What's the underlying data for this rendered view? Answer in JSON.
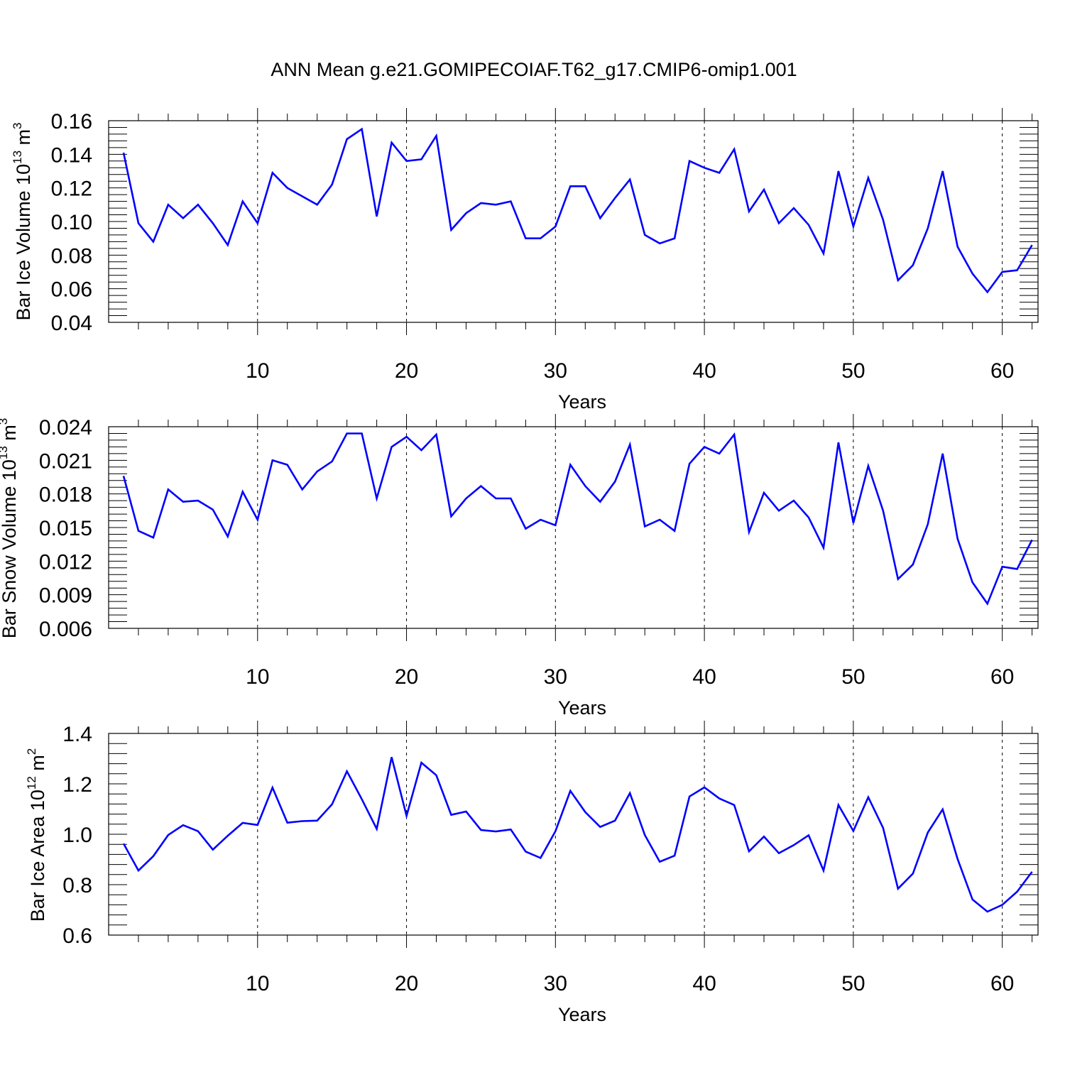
{
  "figure": {
    "title": "ANN Mean g.e21.GOMIPECOIAF.T62_g17.CMIP6-omip1.001",
    "line_color": "#0000ff"
  },
  "chart_data": [
    {
      "type": "line",
      "title": "ANN Mean g.e21.GOMIPECOIAF.T62_g17.CMIP6-omip1.001",
      "xlabel": "Years",
      "ylabel": {
        "text": "Bar Ice Volume 10",
        "sup1": "13",
        "unit": " m",
        "sup2": "3"
      },
      "xlim": [
        1,
        62
      ],
      "ylim": [
        0.04,
        0.16
      ],
      "yticks": [
        "0.04",
        "0.06",
        "0.08",
        "0.10",
        "0.12",
        "0.14",
        "0.16"
      ],
      "xticks": [
        "10",
        "20",
        "30",
        "40",
        "50",
        "60"
      ],
      "grid": "dashed vertical at x ticks",
      "series": [
        {
          "name": "Bar Ice Volume",
          "x": [
            1,
            2,
            3,
            4,
            5,
            6,
            7,
            8,
            9,
            10,
            11,
            12,
            13,
            14,
            15,
            16,
            17,
            18,
            19,
            20,
            21,
            22,
            23,
            24,
            25,
            26,
            27,
            28,
            29,
            30,
            31,
            32,
            33,
            34,
            35,
            36,
            37,
            38,
            39,
            40,
            41,
            42,
            43,
            44,
            45,
            46,
            47,
            48,
            49,
            50,
            51,
            52,
            53,
            54,
            55,
            56,
            57,
            58,
            59,
            60,
            61,
            62
          ],
          "values": [
            0.141,
            0.099,
            0.088,
            0.11,
            0.102,
            0.11,
            0.099,
            0.086,
            0.112,
            0.099,
            0.129,
            0.12,
            0.115,
            0.11,
            0.122,
            0.149,
            0.155,
            0.103,
            0.147,
            0.136,
            0.137,
            0.151,
            0.095,
            0.105,
            0.111,
            0.11,
            0.112,
            0.09,
            0.09,
            0.097,
            0.121,
            0.121,
            0.102,
            0.114,
            0.125,
            0.092,
            0.087,
            0.09,
            0.136,
            0.132,
            0.129,
            0.143,
            0.106,
            0.119,
            0.099,
            0.108,
            0.098,
            0.081,
            0.13,
            0.097,
            0.126,
            0.101,
            0.065,
            0.074,
            0.096,
            0.13,
            0.085,
            0.069,
            0.058,
            0.07,
            0.071,
            0.086
          ]
        }
      ]
    },
    {
      "type": "line",
      "xlabel": "Years",
      "ylabel": {
        "text": "Bar Snow Volume 10",
        "sup1": "13",
        "unit": " m",
        "sup2": "3"
      },
      "xlim": [
        1,
        62
      ],
      "ylim": [
        0.006,
        0.024
      ],
      "yticks": [
        "0.006",
        "0.009",
        "0.012",
        "0.015",
        "0.018",
        "0.021",
        "0.024"
      ],
      "xticks": [
        "10",
        "20",
        "30",
        "40",
        "50",
        "60"
      ],
      "grid": "dashed vertical at x ticks",
      "series": [
        {
          "name": "Bar Snow Volume",
          "x": [
            1,
            2,
            3,
            4,
            5,
            6,
            7,
            8,
            9,
            10,
            11,
            12,
            13,
            14,
            15,
            16,
            17,
            18,
            19,
            20,
            21,
            22,
            23,
            24,
            25,
            26,
            27,
            28,
            29,
            30,
            31,
            32,
            33,
            34,
            35,
            36,
            37,
            38,
            39,
            40,
            41,
            42,
            43,
            44,
            45,
            46,
            47,
            48,
            49,
            50,
            51,
            52,
            53,
            54,
            55,
            56,
            57,
            58,
            59,
            60,
            61,
            62
          ],
          "values": [
            0.0196,
            0.0147,
            0.0141,
            0.0184,
            0.0173,
            0.0174,
            0.0166,
            0.0142,
            0.0182,
            0.0157,
            0.021,
            0.0206,
            0.0184,
            0.02,
            0.0209,
            0.0234,
            0.0234,
            0.0176,
            0.0222,
            0.0231,
            0.0219,
            0.0233,
            0.016,
            0.0176,
            0.0187,
            0.0176,
            0.0176,
            0.0149,
            0.0157,
            0.0152,
            0.0206,
            0.0187,
            0.0173,
            0.0191,
            0.0224,
            0.0151,
            0.0157,
            0.0147,
            0.0207,
            0.0222,
            0.0216,
            0.0233,
            0.0146,
            0.0181,
            0.0165,
            0.0174,
            0.0159,
            0.0132,
            0.0226,
            0.0154,
            0.0205,
            0.0165,
            0.0104,
            0.0117,
            0.0153,
            0.0216,
            0.014,
            0.0101,
            0.0082,
            0.0115,
            0.0113,
            0.0139
          ]
        }
      ]
    },
    {
      "type": "line",
      "xlabel": "Years",
      "ylabel": {
        "text": "Bar Ice Area 10",
        "sup1": "12",
        "unit": " m",
        "sup2": "2"
      },
      "xlim": [
        1,
        62
      ],
      "ylim": [
        0.6,
        1.4
      ],
      "yticks": [
        "0.6",
        "0.8",
        "1.0",
        "1.2",
        "1.4"
      ],
      "xticks": [
        "10",
        "20",
        "30",
        "40",
        "50",
        "60"
      ],
      "grid": "dashed vertical at x ticks",
      "series": [
        {
          "name": "Bar Ice Area",
          "x": [
            1,
            2,
            3,
            4,
            5,
            6,
            7,
            8,
            9,
            10,
            11,
            12,
            13,
            14,
            15,
            16,
            17,
            18,
            19,
            20,
            21,
            22,
            23,
            24,
            25,
            26,
            27,
            28,
            29,
            30,
            31,
            32,
            33,
            34,
            35,
            36,
            37,
            38,
            39,
            40,
            41,
            42,
            43,
            44,
            45,
            46,
            47,
            48,
            49,
            50,
            51,
            52,
            53,
            54,
            55,
            56,
            57,
            58,
            59,
            60,
            61,
            62
          ],
          "values": [
            0.963,
            0.856,
            0.913,
            0.997,
            1.036,
            1.012,
            0.939,
            0.994,
            1.045,
            1.037,
            1.185,
            1.046,
            1.052,
            1.054,
            1.119,
            1.25,
            1.139,
            1.021,
            1.306,
            1.073,
            1.284,
            1.234,
            1.077,
            1.09,
            1.017,
            1.011,
            1.019,
            0.931,
            0.906,
            1.012,
            1.172,
            1.088,
            1.029,
            1.054,
            1.163,
            0.997,
            0.891,
            0.915,
            1.15,
            1.186,
            1.142,
            1.116,
            0.932,
            0.991,
            0.925,
            0.957,
            0.996,
            0.856,
            1.116,
            1.013,
            1.147,
            1.025,
            0.784,
            0.844,
            1.007,
            1.099,
            0.902,
            0.741,
            0.693,
            0.72,
            0.772,
            0.851
          ]
        }
      ]
    }
  ]
}
